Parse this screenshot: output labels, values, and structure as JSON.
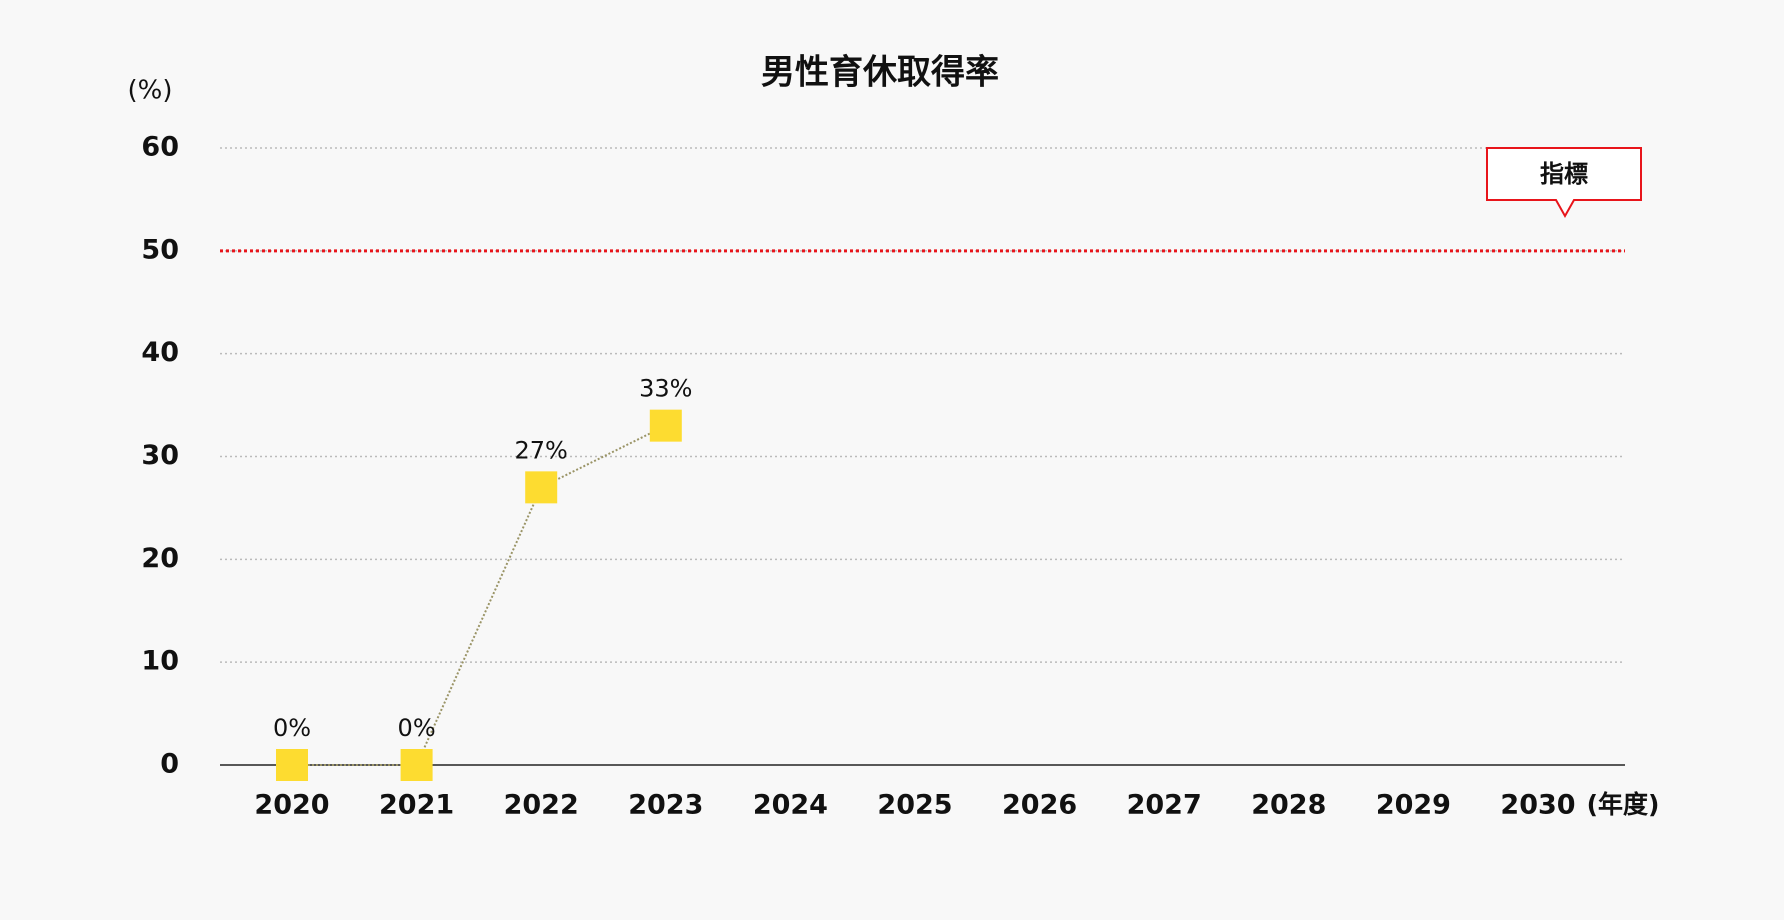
{
  "chart_data": {
    "type": "line",
    "title": "男性育休取得率",
    "ylabel": "(%)",
    "xlabel": "(年度)",
    "categories": [
      "2020",
      "2021",
      "2022",
      "2023",
      "2024",
      "2025",
      "2026",
      "2027",
      "2028",
      "2029",
      "2030"
    ],
    "series": [
      {
        "name": "男性育休取得率",
        "color": "#fddc30",
        "line_color": "#9a9466",
        "values": [
          0,
          0,
          27,
          33,
          null,
          null,
          null,
          null,
          null,
          null,
          null
        ],
        "value_labels": [
          "0%",
          "0%",
          "27%",
          "33%",
          null,
          null,
          null,
          null,
          null,
          null,
          null
        ]
      }
    ],
    "target": {
      "value": 50,
      "label": "指標",
      "color": "#e8151b"
    },
    "ylim": [
      0,
      60
    ],
    "yticks": [
      0,
      10,
      20,
      30,
      40,
      50,
      60
    ],
    "grid": true
  }
}
